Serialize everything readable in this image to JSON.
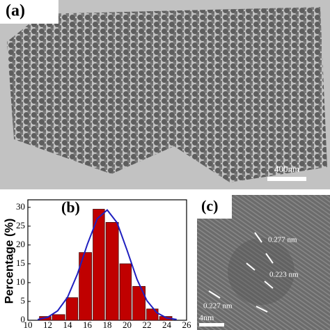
{
  "panels": {
    "a": {
      "label": "(a)",
      "scale_bar": "400nm"
    },
    "c": {
      "label": "(c)",
      "spacings": [
        "0.277 nm",
        "0.223 nm",
        "0.227 nm"
      ],
      "scale_bar": "4nm"
    }
  },
  "chart_data": {
    "type": "histogram",
    "label": "(b)",
    "y_label": "Percentage (%)",
    "bins": [
      11.1,
      12.4,
      13.8,
      15.1,
      16.5,
      17.8,
      19.2,
      20.5,
      21.9,
      23.2,
      24.6
    ],
    "counts": [
      1,
      1.5,
      6,
      18,
      29.5,
      26,
      15,
      9,
      3,
      1
    ],
    "color": "#c00000",
    "fit": {
      "color": "#1f1fbf",
      "x": [
        11,
        12,
        13,
        14,
        15,
        16,
        17,
        18,
        19,
        20,
        21,
        22,
        23,
        24,
        25
      ],
      "y": [
        0.2,
        0.8,
        2.5,
        6.1,
        12.3,
        20.2,
        27,
        29.3,
        25.9,
        18.6,
        10.9,
        5.2,
        2,
        0.6,
        0.2
      ]
    },
    "xlim": [
      10,
      26
    ],
    "xticks": [
      10,
      12,
      14,
      16,
      18,
      20,
      22,
      24,
      26
    ],
    "ylim": [
      0,
      32
    ],
    "yticks": [
      0,
      5,
      10,
      15,
      20,
      25,
      30
    ]
  }
}
